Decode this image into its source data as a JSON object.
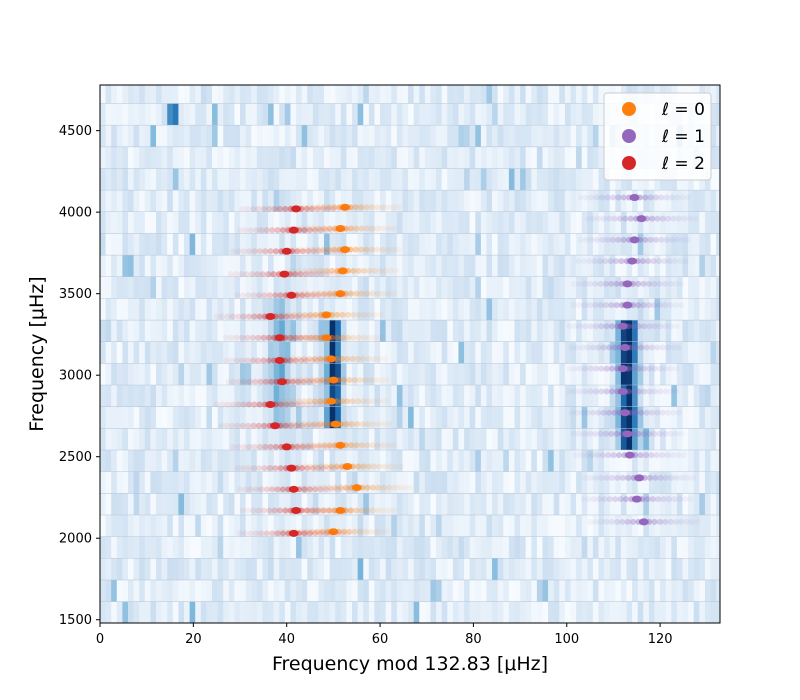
{
  "chart_data": {
    "type": "scatter",
    "title": "",
    "xlabel": "Frequency mod 132.83 [μHz]",
    "ylabel": "Frequency [μHz]",
    "xlim": [
      0,
      132.83
    ],
    "ylim": [
      1480,
      4780
    ],
    "x_ticks": [
      0,
      20,
      40,
      60,
      80,
      100,
      120
    ],
    "y_ticks": [
      1500,
      2000,
      2500,
      3000,
      3500,
      4000,
      4500
    ],
    "x_tick_labels": [
      "0",
      "20",
      "40",
      "60",
      "80",
      "100",
      "120"
    ],
    "y_tick_labels": [
      "1500",
      "2000",
      "2500",
      "3000",
      "3500",
      "4000",
      "4500"
    ],
    "background": "échelle power spectrum (blue colormap, darker = more power)",
    "legend": {
      "placement": "top-right"
    },
    "series": [
      {
        "name": "ℓ = 0",
        "color": "#ff7f0e",
        "points": [
          {
            "x": 50.5,
            "y": 2700
          },
          {
            "x": 49.5,
            "y": 2840
          },
          {
            "x": 50.0,
            "y": 2970
          },
          {
            "x": 49.5,
            "y": 3100
          },
          {
            "x": 48.5,
            "y": 3230
          },
          {
            "x": 48.5,
            "y": 3370
          },
          {
            "x": 51.5,
            "y": 3500
          },
          {
            "x": 52.0,
            "y": 3640
          },
          {
            "x": 52.5,
            "y": 3770
          },
          {
            "x": 51.5,
            "y": 3900
          },
          {
            "x": 52.5,
            "y": 4030
          },
          {
            "x": 51.5,
            "y": 2570
          },
          {
            "x": 53.0,
            "y": 2440
          },
          {
            "x": 55.0,
            "y": 2310
          },
          {
            "x": 51.5,
            "y": 2170
          },
          {
            "x": 50.0,
            "y": 2040
          }
        ]
      },
      {
        "name": "ℓ = 1",
        "color": "#9467bd",
        "points": [
          {
            "x": 112.0,
            "y": 3300
          },
          {
            "x": 112.5,
            "y": 3170
          },
          {
            "x": 112.0,
            "y": 3040
          },
          {
            "x": 112.0,
            "y": 2900
          },
          {
            "x": 112.5,
            "y": 2770
          },
          {
            "x": 113.0,
            "y": 2640
          },
          {
            "x": 113.5,
            "y": 2510
          },
          {
            "x": 115.5,
            "y": 2370
          },
          {
            "x": 115.0,
            "y": 2240
          },
          {
            "x": 116.5,
            "y": 2100
          },
          {
            "x": 113.0,
            "y": 3430
          },
          {
            "x": 113.0,
            "y": 3560
          },
          {
            "x": 114.0,
            "y": 3700
          },
          {
            "x": 114.5,
            "y": 3830
          },
          {
            "x": 116.0,
            "y": 3960
          },
          {
            "x": 114.5,
            "y": 4090
          }
        ]
      },
      {
        "name": "ℓ = 2",
        "color": "#d62728",
        "points": [
          {
            "x": 37.5,
            "y": 2690
          },
          {
            "x": 36.5,
            "y": 2820
          },
          {
            "x": 39.0,
            "y": 2960
          },
          {
            "x": 38.5,
            "y": 3090
          },
          {
            "x": 38.5,
            "y": 3230
          },
          {
            "x": 36.5,
            "y": 3360
          },
          {
            "x": 41.0,
            "y": 3490
          },
          {
            "x": 39.5,
            "y": 3620
          },
          {
            "x": 40.0,
            "y": 3760
          },
          {
            "x": 41.5,
            "y": 3890
          },
          {
            "x": 42.0,
            "y": 4020
          },
          {
            "x": 40.0,
            "y": 2560
          },
          {
            "x": 41.0,
            "y": 2430
          },
          {
            "x": 41.5,
            "y": 2300
          },
          {
            "x": 42.0,
            "y": 2170
          },
          {
            "x": 41.5,
            "y": 2030
          }
        ]
      }
    ]
  },
  "legend_items": [
    {
      "label": "ℓ = 0",
      "color": "#ff7f0e"
    },
    {
      "label": "ℓ = 1",
      "color": "#9467bd"
    },
    {
      "label": "ℓ = 2",
      "color": "#d62728"
    }
  ],
  "colors": {
    "l0": "#ff7f0e",
    "l1": "#9467bd",
    "l2": "#d62728",
    "spectrum_low": "#f7fbff",
    "spectrum_high": "#08306b"
  }
}
